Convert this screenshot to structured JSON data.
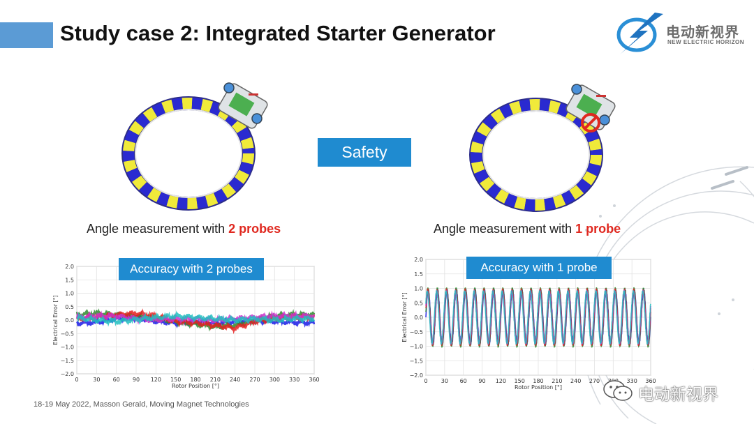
{
  "slide": {
    "title": "Study case 2: Integrated Starter Generator",
    "accent_color": "#5b9bd5",
    "highlight_color": "#1f8bd0",
    "emphasis_color": "#e0281f"
  },
  "logo": {
    "name_cn": "电动新视界",
    "name_en": "NEW ELECTRIC HORIZON",
    "icon": "lightning-globe-icon"
  },
  "center_label": "Safety",
  "left_panel": {
    "angle_text": "Angle measurement with ",
    "angle_emphasis": "2 probes",
    "badge": "Accuracy with 2 probes"
  },
  "right_panel": {
    "angle_text": "Angle measurement with ",
    "angle_emphasis": "1 probe",
    "badge": "Accuracy with 1 probe"
  },
  "chart_data": [
    {
      "type": "line",
      "xlabel": "Rotor Position [°]",
      "ylabel": "Electrical Error [°]",
      "xlim": [
        0,
        360
      ],
      "ylim": [
        -2.0,
        2.0
      ],
      "xticks": [
        0,
        30,
        60,
        90,
        120,
        150,
        180,
        210,
        240,
        270,
        300,
        330,
        360
      ],
      "yticks": [
        -2.0,
        -1.5,
        -1.0,
        -0.5,
        0.0,
        0.5,
        1.0,
        1.5,
        2.0
      ],
      "grid": true,
      "series_colors": [
        "#1a1ae6",
        "#2e8b2e",
        "#e62020",
        "#cc33cc",
        "#20c0c0"
      ],
      "series": [
        {
          "values": [
            [
              0,
              -0.12
            ],
            [
              30,
              -0.08
            ],
            [
              60,
              0.05
            ],
            [
              90,
              0.1
            ],
            [
              120,
              -0.05
            ],
            [
              150,
              -0.1
            ],
            [
              180,
              -0.05
            ],
            [
              210,
              -0.12
            ],
            [
              240,
              -0.05
            ],
            [
              270,
              -0.02
            ],
            [
              300,
              -0.05
            ],
            [
              330,
              -0.08
            ],
            [
              360,
              -0.1
            ]
          ]
        },
        {
          "values": [
            [
              0,
              0.2
            ],
            [
              30,
              0.25
            ],
            [
              60,
              0.2
            ],
            [
              90,
              0.15
            ],
            [
              120,
              0.05
            ],
            [
              150,
              -0.05
            ],
            [
              180,
              -0.15
            ],
            [
              210,
              -0.25
            ],
            [
              240,
              -0.2
            ],
            [
              270,
              0.0
            ],
            [
              300,
              0.15
            ],
            [
              330,
              0.2
            ],
            [
              360,
              0.2
            ]
          ]
        },
        {
          "values": [
            [
              0,
              0.05
            ],
            [
              30,
              0.1
            ],
            [
              60,
              0.2
            ],
            [
              90,
              0.25
            ],
            [
              120,
              0.15
            ],
            [
              150,
              -0.05
            ],
            [
              180,
              -0.1
            ],
            [
              210,
              -0.2
            ],
            [
              240,
              -0.3
            ],
            [
              270,
              -0.05
            ],
            [
              300,
              0.05
            ],
            [
              330,
              0.1
            ],
            [
              360,
              0.1
            ]
          ]
        },
        {
          "values": [
            [
              0,
              0.1
            ],
            [
              30,
              0.15
            ],
            [
              60,
              0.15
            ],
            [
              90,
              0.05
            ],
            [
              120,
              0.0
            ],
            [
              150,
              0.05
            ],
            [
              180,
              0.05
            ],
            [
              210,
              0.0
            ],
            [
              240,
              0.05
            ],
            [
              270,
              0.1
            ],
            [
              300,
              0.15
            ],
            [
              330,
              0.15
            ],
            [
              360,
              0.15
            ]
          ]
        },
        {
          "values": [
            [
              0,
              0.08
            ],
            [
              30,
              0.0
            ],
            [
              60,
              -0.05
            ],
            [
              90,
              0.02
            ],
            [
              120,
              0.1
            ],
            [
              150,
              0.15
            ],
            [
              180,
              0.1
            ],
            [
              210,
              0.05
            ],
            [
              240,
              0.0
            ],
            [
              270,
              0.05
            ],
            [
              300,
              0.0
            ],
            [
              330,
              0.05
            ],
            [
              360,
              0.05
            ]
          ]
        }
      ]
    },
    {
      "type": "line",
      "xlabel": "Rotor Position [°]",
      "ylabel": "Electrical Error [°]",
      "xlim": [
        0,
        360
      ],
      "ylim": [
        -2.0,
        2.0
      ],
      "xticks": [
        0,
        30,
        60,
        90,
        120,
        150,
        180,
        210,
        240,
        270,
        300,
        330,
        360
      ],
      "yticks": [
        -2.0,
        -1.5,
        -1.0,
        -0.5,
        0.0,
        0.5,
        1.0,
        1.5,
        2.0
      ],
      "grid": true,
      "series_colors": [
        "#1a1ae6",
        "#2e8b2e",
        "#e62020",
        "#cc33cc",
        "#20c0c0"
      ],
      "series": [
        {
          "amplitude": 0.95,
          "cycles": 24,
          "phase": 0.0
        },
        {
          "amplitude": 1.0,
          "cycles": 24,
          "phase": 0.15
        },
        {
          "amplitude": 0.95,
          "cycles": 24,
          "phase": 0.3
        },
        {
          "amplitude": 0.9,
          "cycles": 24,
          "phase": 0.45
        },
        {
          "amplitude": 0.9,
          "cycles": 24,
          "phase": 0.6
        }
      ]
    }
  ],
  "footer": "18-19 May 2022, Masson Gerald, Moving Magnet Technologies",
  "watermark": {
    "text": "电动新视界",
    "icon": "wechat-icon"
  }
}
